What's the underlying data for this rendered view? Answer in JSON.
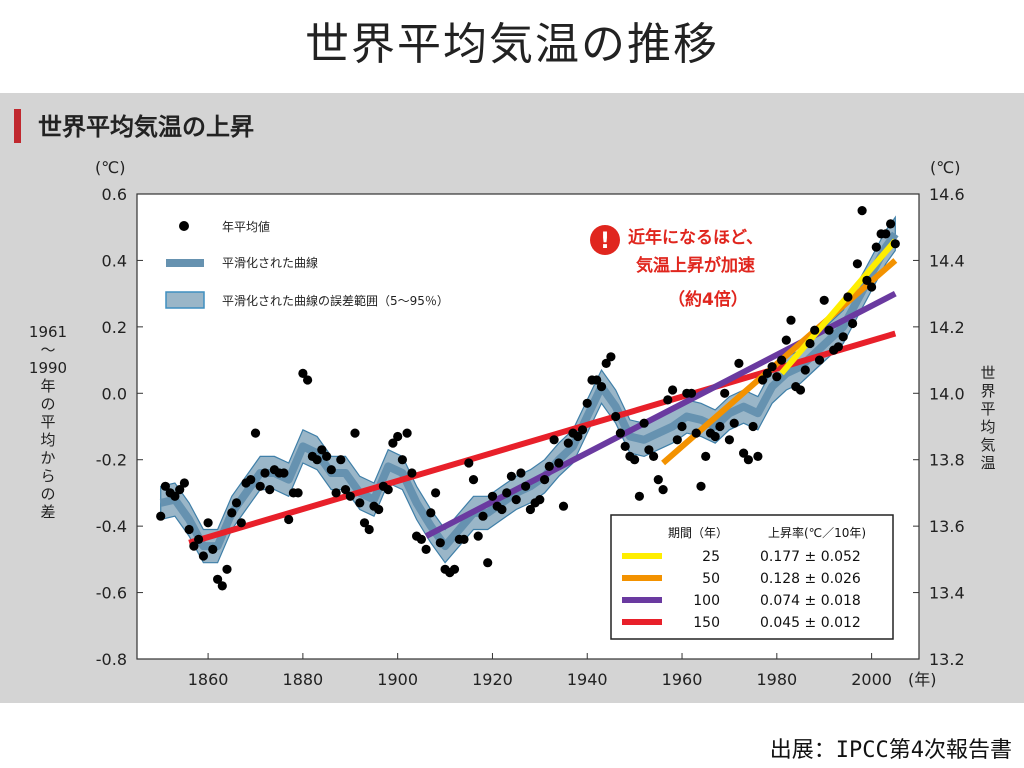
{
  "slide": {
    "title": "世界平均気温の推移",
    "source": "出展：IPCC第4次報告書"
  },
  "panel": {
    "heading": "世界平均気温の上昇"
  },
  "colors": {
    "panel_bg": "#d4d4d4",
    "accent_bar": "#c0282e",
    "band": "#9ab6c8",
    "smooth": "#6692b0",
    "dot": "#000000",
    "trend_25": "#ffee00",
    "trend_50": "#f39200",
    "trend_100": "#6a3aa0",
    "trend_150": "#e8202a",
    "callout": "#e0261e"
  },
  "chart_data": {
    "type": "scatter",
    "title": "世界平均気温の上昇",
    "left_axis": {
      "unit": "(℃)",
      "label": "1961〜1990年の平均からの差",
      "range": [
        -0.8,
        0.6
      ],
      "ticks": [
        "0.6",
        "0.4",
        "0.2",
        "0.0",
        "-0.2",
        "-0.4",
        "-0.6",
        "-0.8"
      ]
    },
    "right_axis": {
      "unit": "(℃)",
      "label": "世界平均気温",
      "range": [
        13.2,
        14.6
      ],
      "ticks": [
        "14.6",
        "14.4",
        "14.2",
        "14.0",
        "13.8",
        "13.6",
        "13.4",
        "13.2"
      ]
    },
    "x_axis": {
      "unit": "(年)",
      "range": [
        1845,
        2010
      ],
      "ticks": [
        "1860",
        "1880",
        "1900",
        "1920",
        "1940",
        "1960",
        "1980",
        "2000"
      ]
    },
    "legend": {
      "dots": "年平均値",
      "smooth": "平滑化された曲線",
      "band": "平滑化された曲線の誤差範囲（5〜95％）"
    },
    "annual_points": [
      [
        1850,
        -0.37
      ],
      [
        1851,
        -0.28
      ],
      [
        1852,
        -0.3
      ],
      [
        1853,
        -0.31
      ],
      [
        1854,
        -0.29
      ],
      [
        1855,
        -0.27
      ],
      [
        1856,
        -0.41
      ],
      [
        1857,
        -0.46
      ],
      [
        1858,
        -0.44
      ],
      [
        1859,
        -0.49
      ],
      [
        1860,
        -0.39
      ],
      [
        1861,
        -0.47
      ],
      [
        1862,
        -0.56
      ],
      [
        1863,
        -0.58
      ],
      [
        1864,
        -0.53
      ],
      [
        1865,
        -0.36
      ],
      [
        1866,
        -0.33
      ],
      [
        1867,
        -0.39
      ],
      [
        1868,
        -0.27
      ],
      [
        1869,
        -0.26
      ],
      [
        1870,
        -0.12
      ],
      [
        1871,
        -0.28
      ],
      [
        1872,
        -0.24
      ],
      [
        1873,
        -0.29
      ],
      [
        1874,
        -0.23
      ],
      [
        1875,
        -0.24
      ],
      [
        1876,
        -0.24
      ],
      [
        1877,
        -0.38
      ],
      [
        1878,
        -0.3
      ],
      [
        1879,
        -0.3
      ],
      [
        1880,
        0.06
      ],
      [
        1881,
        0.04
      ],
      [
        1882,
        -0.19
      ],
      [
        1883,
        -0.2
      ],
      [
        1884,
        -0.17
      ],
      [
        1885,
        -0.19
      ],
      [
        1886,
        -0.23
      ],
      [
        1887,
        -0.3
      ],
      [
        1888,
        -0.2
      ],
      [
        1889,
        -0.29
      ],
      [
        1890,
        -0.31
      ],
      [
        1891,
        -0.12
      ],
      [
        1892,
        -0.33
      ],
      [
        1893,
        -0.39
      ],
      [
        1894,
        -0.41
      ],
      [
        1895,
        -0.34
      ],
      [
        1896,
        -0.35
      ],
      [
        1897,
        -0.28
      ],
      [
        1898,
        -0.29
      ],
      [
        1899,
        -0.15
      ],
      [
        1900,
        -0.13
      ],
      [
        1901,
        -0.2
      ],
      [
        1902,
        -0.12
      ],
      [
        1903,
        -0.24
      ],
      [
        1904,
        -0.43
      ],
      [
        1905,
        -0.44
      ],
      [
        1906,
        -0.47
      ],
      [
        1907,
        -0.36
      ],
      [
        1908,
        -0.3
      ],
      [
        1909,
        -0.45
      ],
      [
        1910,
        -0.53
      ],
      [
        1911,
        -0.54
      ],
      [
        1912,
        -0.53
      ],
      [
        1913,
        -0.44
      ],
      [
        1914,
        -0.44
      ],
      [
        1915,
        -0.21
      ],
      [
        1916,
        -0.26
      ],
      [
        1917,
        -0.43
      ],
      [
        1918,
        -0.37
      ],
      [
        1919,
        -0.51
      ],
      [
        1920,
        -0.31
      ],
      [
        1921,
        -0.34
      ],
      [
        1922,
        -0.35
      ],
      [
        1923,
        -0.3
      ],
      [
        1924,
        -0.25
      ],
      [
        1925,
        -0.32
      ],
      [
        1926,
        -0.24
      ],
      [
        1927,
        -0.28
      ],
      [
        1928,
        -0.35
      ],
      [
        1929,
        -0.33
      ],
      [
        1930,
        -0.32
      ],
      [
        1931,
        -0.26
      ],
      [
        1932,
        -0.22
      ],
      [
        1933,
        -0.14
      ],
      [
        1934,
        -0.21
      ],
      [
        1935,
        -0.34
      ],
      [
        1936,
        -0.15
      ],
      [
        1937,
        -0.12
      ],
      [
        1938,
        -0.13
      ],
      [
        1939,
        -0.11
      ],
      [
        1940,
        -0.03
      ],
      [
        1941,
        0.04
      ],
      [
        1942,
        0.04
      ],
      [
        1943,
        0.02
      ],
      [
        1944,
        0.09
      ],
      [
        1945,
        0.11
      ],
      [
        1946,
        -0.07
      ],
      [
        1947,
        -0.12
      ],
      [
        1948,
        -0.16
      ],
      [
        1949,
        -0.19
      ],
      [
        1950,
        -0.2
      ],
      [
        1951,
        -0.31
      ],
      [
        1952,
        -0.09
      ],
      [
        1953,
        -0.17
      ],
      [
        1954,
        -0.19
      ],
      [
        1955,
        -0.26
      ],
      [
        1956,
        -0.29
      ],
      [
        1957,
        -0.02
      ],
      [
        1958,
        0.01
      ],
      [
        1959,
        -0.14
      ],
      [
        1960,
        -0.1
      ],
      [
        1961,
        0.0
      ],
      [
        1962,
        0.0
      ],
      [
        1963,
        -0.12
      ],
      [
        1964,
        -0.28
      ],
      [
        1965,
        -0.19
      ],
      [
        1966,
        -0.12
      ],
      [
        1967,
        -0.13
      ],
      [
        1968,
        -0.1
      ],
      [
        1969,
        0.0
      ],
      [
        1970,
        -0.14
      ],
      [
        1971,
        -0.09
      ],
      [
        1972,
        0.09
      ],
      [
        1973,
        -0.18
      ],
      [
        1974,
        -0.2
      ],
      [
        1975,
        -0.1
      ],
      [
        1976,
        -0.19
      ],
      [
        1977,
        0.04
      ],
      [
        1978,
        0.06
      ],
      [
        1979,
        0.08
      ],
      [
        1980,
        0.05
      ],
      [
        1981,
        0.1
      ],
      [
        1982,
        0.16
      ],
      [
        1983,
        0.22
      ],
      [
        1984,
        0.02
      ],
      [
        1985,
        0.01
      ],
      [
        1986,
        0.07
      ],
      [
        1987,
        0.15
      ],
      [
        1988,
        0.19
      ],
      [
        1989,
        0.1
      ],
      [
        1990,
        0.28
      ],
      [
        1991,
        0.19
      ],
      [
        1992,
        0.13
      ],
      [
        1993,
        0.14
      ],
      [
        1994,
        0.17
      ],
      [
        1995,
        0.29
      ],
      [
        1996,
        0.21
      ],
      [
        1997,
        0.39
      ],
      [
        1998,
        0.55
      ],
      [
        1999,
        0.34
      ],
      [
        2000,
        0.32
      ],
      [
        2001,
        0.44
      ],
      [
        2002,
        0.48
      ],
      [
        2003,
        0.48
      ],
      [
        2004,
        0.51
      ],
      [
        2005,
        0.45
      ]
    ],
    "smoothed_curve": [
      [
        1850,
        -0.33
      ],
      [
        1853,
        -0.32
      ],
      [
        1856,
        -0.38
      ],
      [
        1859,
        -0.46
      ],
      [
        1862,
        -0.46
      ],
      [
        1865,
        -0.36
      ],
      [
        1868,
        -0.3
      ],
      [
        1871,
        -0.24
      ],
      [
        1874,
        -0.24
      ],
      [
        1877,
        -0.26
      ],
      [
        1880,
        -0.16
      ],
      [
        1883,
        -0.18
      ],
      [
        1886,
        -0.24
      ],
      [
        1889,
        -0.24
      ],
      [
        1892,
        -0.3
      ],
      [
        1895,
        -0.32
      ],
      [
        1898,
        -0.22
      ],
      [
        1901,
        -0.24
      ],
      [
        1904,
        -0.33
      ],
      [
        1907,
        -0.4
      ],
      [
        1910,
        -0.46
      ],
      [
        1913,
        -0.41
      ],
      [
        1916,
        -0.36
      ],
      [
        1919,
        -0.36
      ],
      [
        1922,
        -0.33
      ],
      [
        1925,
        -0.3
      ],
      [
        1928,
        -0.28
      ],
      [
        1931,
        -0.25
      ],
      [
        1934,
        -0.2
      ],
      [
        1937,
        -0.16
      ],
      [
        1940,
        -0.07
      ],
      [
        1943,
        0.02
      ],
      [
        1946,
        -0.04
      ],
      [
        1949,
        -0.13
      ],
      [
        1952,
        -0.14
      ],
      [
        1955,
        -0.12
      ],
      [
        1958,
        -0.1
      ],
      [
        1961,
        -0.07
      ],
      [
        1964,
        -0.08
      ],
      [
        1967,
        -0.1
      ],
      [
        1970,
        -0.06
      ],
      [
        1973,
        -0.04
      ],
      [
        1976,
        -0.06
      ],
      [
        1979,
        0.02
      ],
      [
        1982,
        0.06
      ],
      [
        1985,
        0.08
      ],
      [
        1988,
        0.12
      ],
      [
        1991,
        0.16
      ],
      [
        1994,
        0.2
      ],
      [
        1997,
        0.28
      ],
      [
        2000,
        0.36
      ],
      [
        2003,
        0.44
      ],
      [
        2005,
        0.48
      ]
    ],
    "band_halfwidth": 0.05,
    "trend_table": {
      "header_period": "期間（年）",
      "header_rate": "上昇率(℃／10年)",
      "rows": [
        {
          "period": "25",
          "rate": "0.177 ± 0.052",
          "x": [
            1981,
            2005
          ],
          "y": [
            0.06,
            0.46
          ]
        },
        {
          "period": "50",
          "rate": "0.128 ± 0.026",
          "x": [
            1956,
            2005
          ],
          "y": [
            -0.21,
            0.4
          ]
        },
        {
          "period": "100",
          "rate": "0.074 ± 0.018",
          "x": [
            1906,
            2005
          ],
          "y": [
            -0.43,
            0.3
          ]
        },
        {
          "period": "150",
          "rate": "0.045 ± 0.012",
          "x": [
            1856,
            2005
          ],
          "y": [
            -0.45,
            0.18
          ]
        }
      ]
    },
    "callout": {
      "line1": "近年になるほど、",
      "line2": "気温上昇が加速",
      "line3": "（約4倍）"
    }
  }
}
